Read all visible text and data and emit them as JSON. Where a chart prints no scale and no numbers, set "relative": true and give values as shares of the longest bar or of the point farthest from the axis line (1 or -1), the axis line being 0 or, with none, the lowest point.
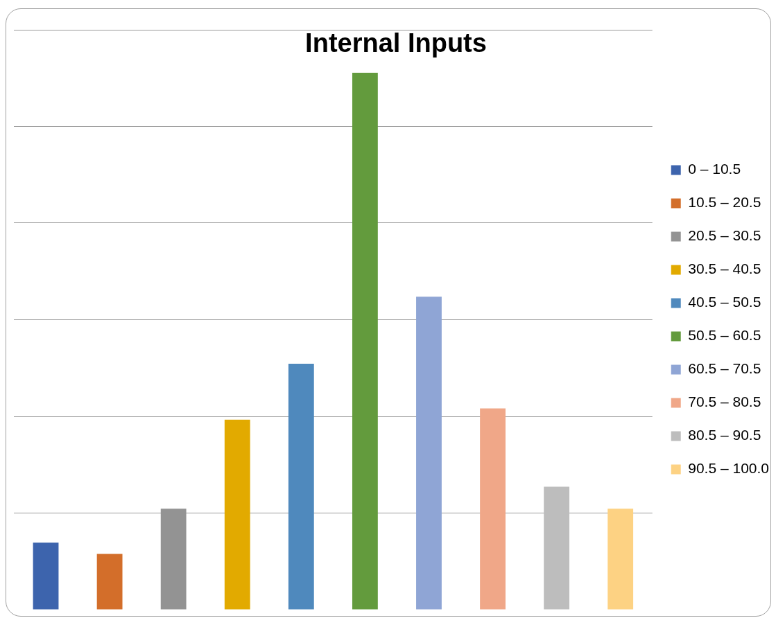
{
  "chart_data": {
    "type": "bar",
    "title": "Internal Inputs",
    "relative": true,
    "stacked": true,
    "categories": [
      null,
      null,
      null,
      null,
      null,
      null,
      null,
      null,
      null,
      null
    ],
    "grid": "y",
    "legend": "right",
    "series": [
      {
        "name": "0 – 10.5",
        "color": "#3d64ad",
        "values": [
          0.125,
          null,
          null,
          null,
          null,
          null,
          null,
          null,
          null,
          null
        ]
      },
      {
        "name": "10.5 – 20.5",
        "color": "#d36e2a",
        "values": [
          null,
          0.104,
          null,
          null,
          null,
          null,
          null,
          null,
          null,
          null
        ]
      },
      {
        "name": "20.5 – 30.5",
        "color": "#939393",
        "values": [
          null,
          null,
          0.188,
          null,
          null,
          null,
          null,
          null,
          null,
          null
        ]
      },
      {
        "name": "30.5 – 40.5",
        "color": "#e2aa00",
        "values": [
          null,
          null,
          null,
          0.354,
          null,
          null,
          null,
          null,
          null,
          null
        ]
      },
      {
        "name": "40.5 – 50.5",
        "color": "#4f89bd",
        "values": [
          null,
          null,
          null,
          null,
          0.458,
          null,
          null,
          null,
          null,
          null
        ]
      },
      {
        "name": "50.5 – 60.5",
        "color": "#639b3d",
        "values": [
          null,
          null,
          null,
          null,
          null,
          1,
          null,
          null,
          null,
          null
        ]
      },
      {
        "name": "60.5 – 70.5",
        "color": "#8fa5d5",
        "values": [
          null,
          null,
          null,
          null,
          null,
          null,
          0.583,
          null,
          null,
          null
        ]
      },
      {
        "name": "70.5 – 80.5",
        "color": "#f0a788",
        "values": [
          null,
          null,
          null,
          null,
          null,
          null,
          null,
          0.375,
          null,
          null
        ]
      },
      {
        "name": "80.5 – 90.5",
        "color": "#bdbdbd",
        "values": [
          null,
          null,
          null,
          null,
          null,
          null,
          null,
          null,
          0.229,
          null
        ]
      },
      {
        "name": "90.5 – 100.0",
        "color": "#fdd283",
        "values": [
          null,
          null,
          null,
          null,
          null,
          null,
          null,
          null,
          null,
          0.188
        ]
      }
    ]
  }
}
